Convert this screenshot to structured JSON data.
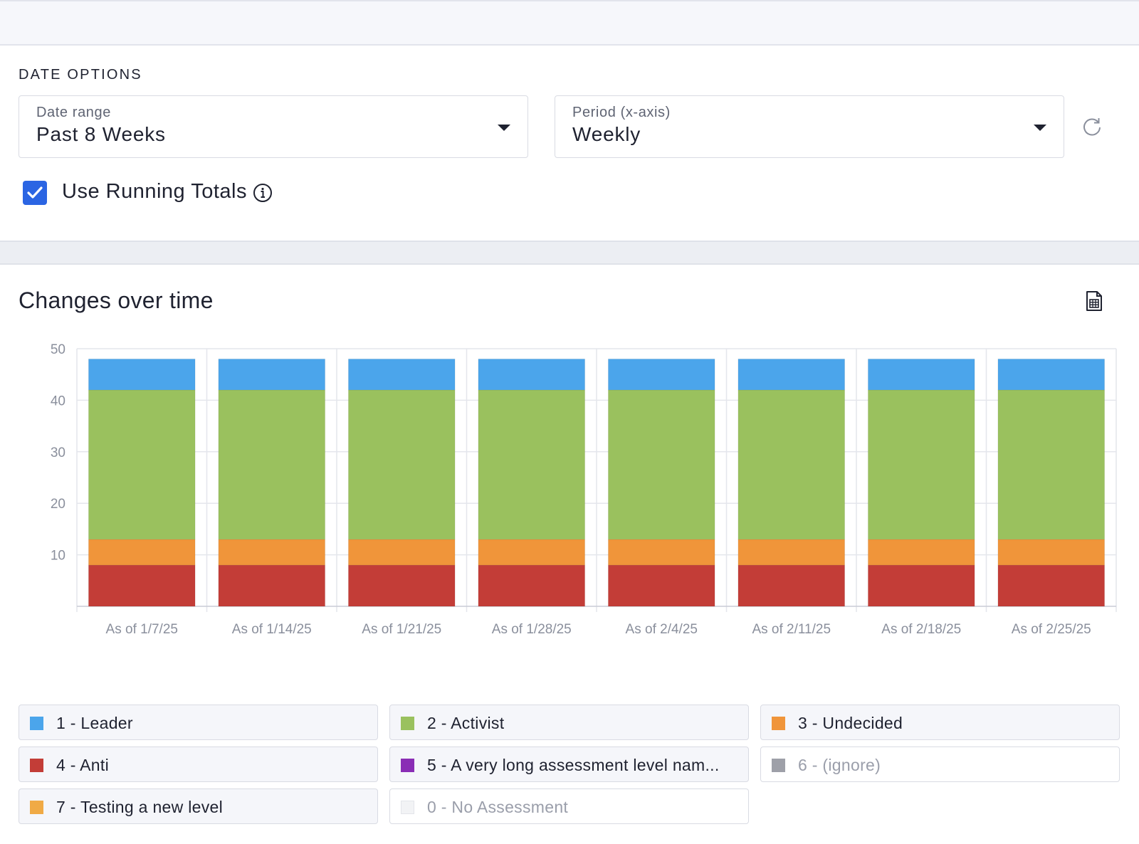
{
  "date_options": {
    "section_title": "DATE OPTIONS",
    "date_range": {
      "label": "Date range",
      "value": "Past 8 Weeks"
    },
    "period": {
      "label": "Period (x-axis)",
      "value": "Weekly"
    },
    "running_totals": {
      "label": "Use Running Totals",
      "checked": true
    }
  },
  "chart_panel": {
    "title": "Changes over time",
    "export_icon": "spreadsheet-export-icon",
    "refresh_icon": "refresh-icon"
  },
  "chart_data": {
    "type": "bar",
    "stacked": true,
    "title": "Changes over time",
    "categories": [
      "As of 1/7/25",
      "As of 1/14/25",
      "As of 1/21/25",
      "As of 1/28/25",
      "As of 2/4/25",
      "As of 2/11/25",
      "As of 2/18/25",
      "As of 2/25/25"
    ],
    "series": [
      {
        "name": "4 - Anti",
        "color": "#c33d37",
        "values": [
          8,
          8,
          8,
          8,
          8,
          8,
          8,
          8
        ]
      },
      {
        "name": "3 - Undecided",
        "color": "#f0953a",
        "values": [
          5,
          5,
          5,
          5,
          5,
          5,
          5,
          5
        ]
      },
      {
        "name": "2 - Activist",
        "color": "#9ac15e",
        "values": [
          29,
          29,
          29,
          29,
          29,
          29,
          29,
          29
        ]
      },
      {
        "name": "1 - Leader",
        "color": "#4ba5eb",
        "values": [
          6,
          6,
          6,
          6,
          6,
          6,
          6,
          6
        ]
      }
    ],
    "yticks": [
      10,
      20,
      30,
      40,
      50
    ],
    "ylim": [
      0,
      50
    ],
    "grid": true
  },
  "legend": [
    {
      "label": "1 - Leader",
      "color": "#4ba5eb",
      "active": true
    },
    {
      "label": "2 - Activist",
      "color": "#9ac15e",
      "active": true
    },
    {
      "label": "3 - Undecided",
      "color": "#f0953a",
      "active": true
    },
    {
      "label": "4 - Anti",
      "color": "#c33d37",
      "active": true
    },
    {
      "label": "5 - A very long assessment level nam...",
      "color": "#8a2db5",
      "active": true
    },
    {
      "label": "6 - (ignore)",
      "color": "#9ea0a8",
      "active": false
    },
    {
      "label": "7 - Testing a new level",
      "color": "#f0aa45",
      "active": true
    },
    {
      "label": "0 - No Assessment",
      "color": "#f2f3f5",
      "active": false
    }
  ]
}
